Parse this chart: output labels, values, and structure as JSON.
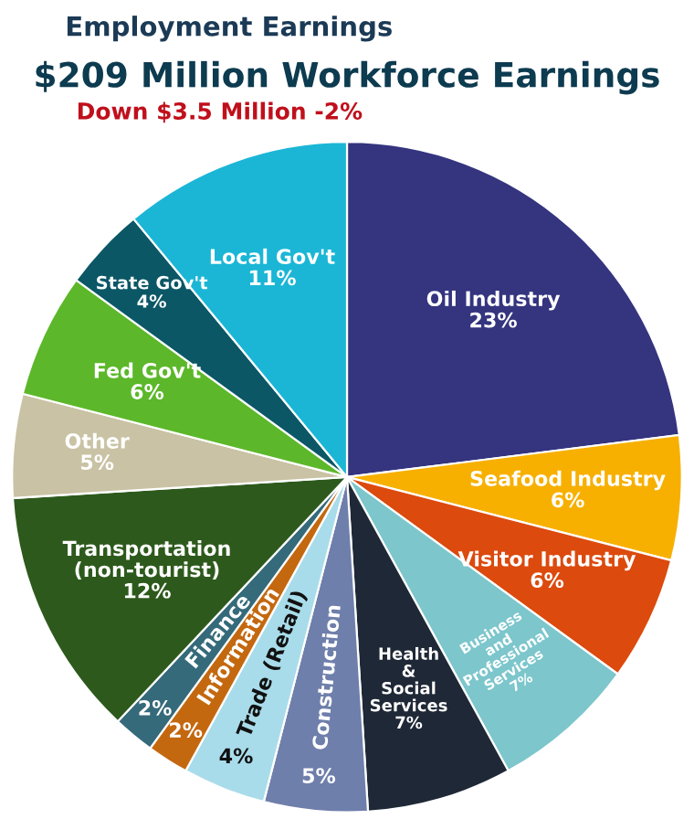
{
  "chart_data": {
    "type": "pie",
    "title": "$209 Million Workforce Earnings",
    "subtitle": "Down $3.5 Million -2%",
    "annotations": [
      "Employment Earnings"
    ],
    "categories": [
      "Oil Industry",
      "Seafood Industry",
      "Visitor Industry",
      "Business\nand\nProfessional\nServices",
      "Health\n&\nSocial\nServices",
      "Construction",
      "Trade (Retail)",
      "Information",
      "Finance",
      "Transportation\n(non-tourist)",
      "Other",
      "Fed Gov't",
      "State Gov't",
      "Local Gov't"
    ],
    "values": [
      23,
      6,
      6,
      7,
      7,
      5,
      4,
      2,
      2,
      12,
      5,
      6,
      4,
      11
    ],
    "value_labels": [
      "23%",
      "6%",
      "6%",
      "7%",
      "7%",
      "5%",
      "4%",
      "2%",
      "2%",
      "12%",
      "5%",
      "6%",
      "4%",
      "11%"
    ],
    "colors": [
      "#34347f",
      "#f7b000",
      "#dc4a0e",
      "#7cc6cc",
      "#1f2836",
      "#6f7fab",
      "#a9dcea",
      "#c4680f",
      "#356a7a",
      "#2d5a1c",
      "#c9c2a4",
      "#5cb82a",
      "#0b5766",
      "#1bb6d6"
    ],
    "legend": false
  }
}
